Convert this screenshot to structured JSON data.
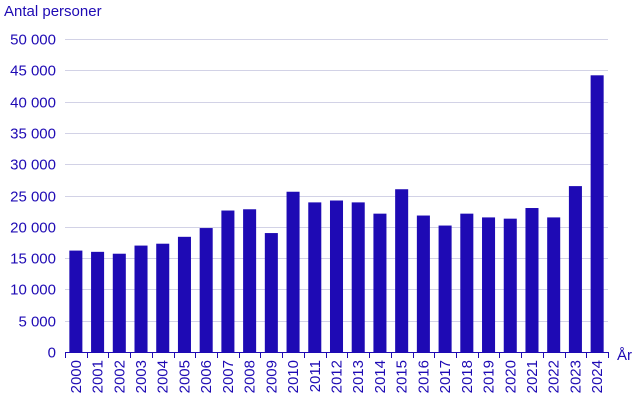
{
  "chart_data": {
    "type": "bar",
    "ylabel": "Antal personer",
    "xlabel": "År",
    "categories": [
      "2000",
      "2001",
      "2002",
      "2003",
      "2004",
      "2005",
      "2006",
      "2007",
      "2008",
      "2009",
      "2010",
      "2011",
      "2012",
      "2013",
      "2014",
      "2015",
      "2016",
      "2017",
      "2018",
      "2019",
      "2020",
      "2021",
      "2022",
      "2023",
      "2024"
    ],
    "values": [
      16200,
      16000,
      15700,
      17000,
      17300,
      18400,
      19800,
      22600,
      22800,
      19000,
      25600,
      23900,
      24200,
      23900,
      22100,
      26000,
      21800,
      20200,
      22100,
      21500,
      21300,
      23000,
      21500,
      26500,
      44200
    ],
    "ylim": [
      0,
      50000
    ],
    "yticks": [
      0,
      5000,
      10000,
      15000,
      20000,
      25000,
      30000,
      35000,
      40000,
      45000,
      50000
    ],
    "ytick_labels": [
      "0",
      "5 000",
      "10 000",
      "15 000",
      "20 000",
      "25 000",
      "30 000",
      "35 000",
      "40 000",
      "45 000",
      "50 000"
    ],
    "grid": true,
    "bar_color": "#1e0ab4"
  }
}
